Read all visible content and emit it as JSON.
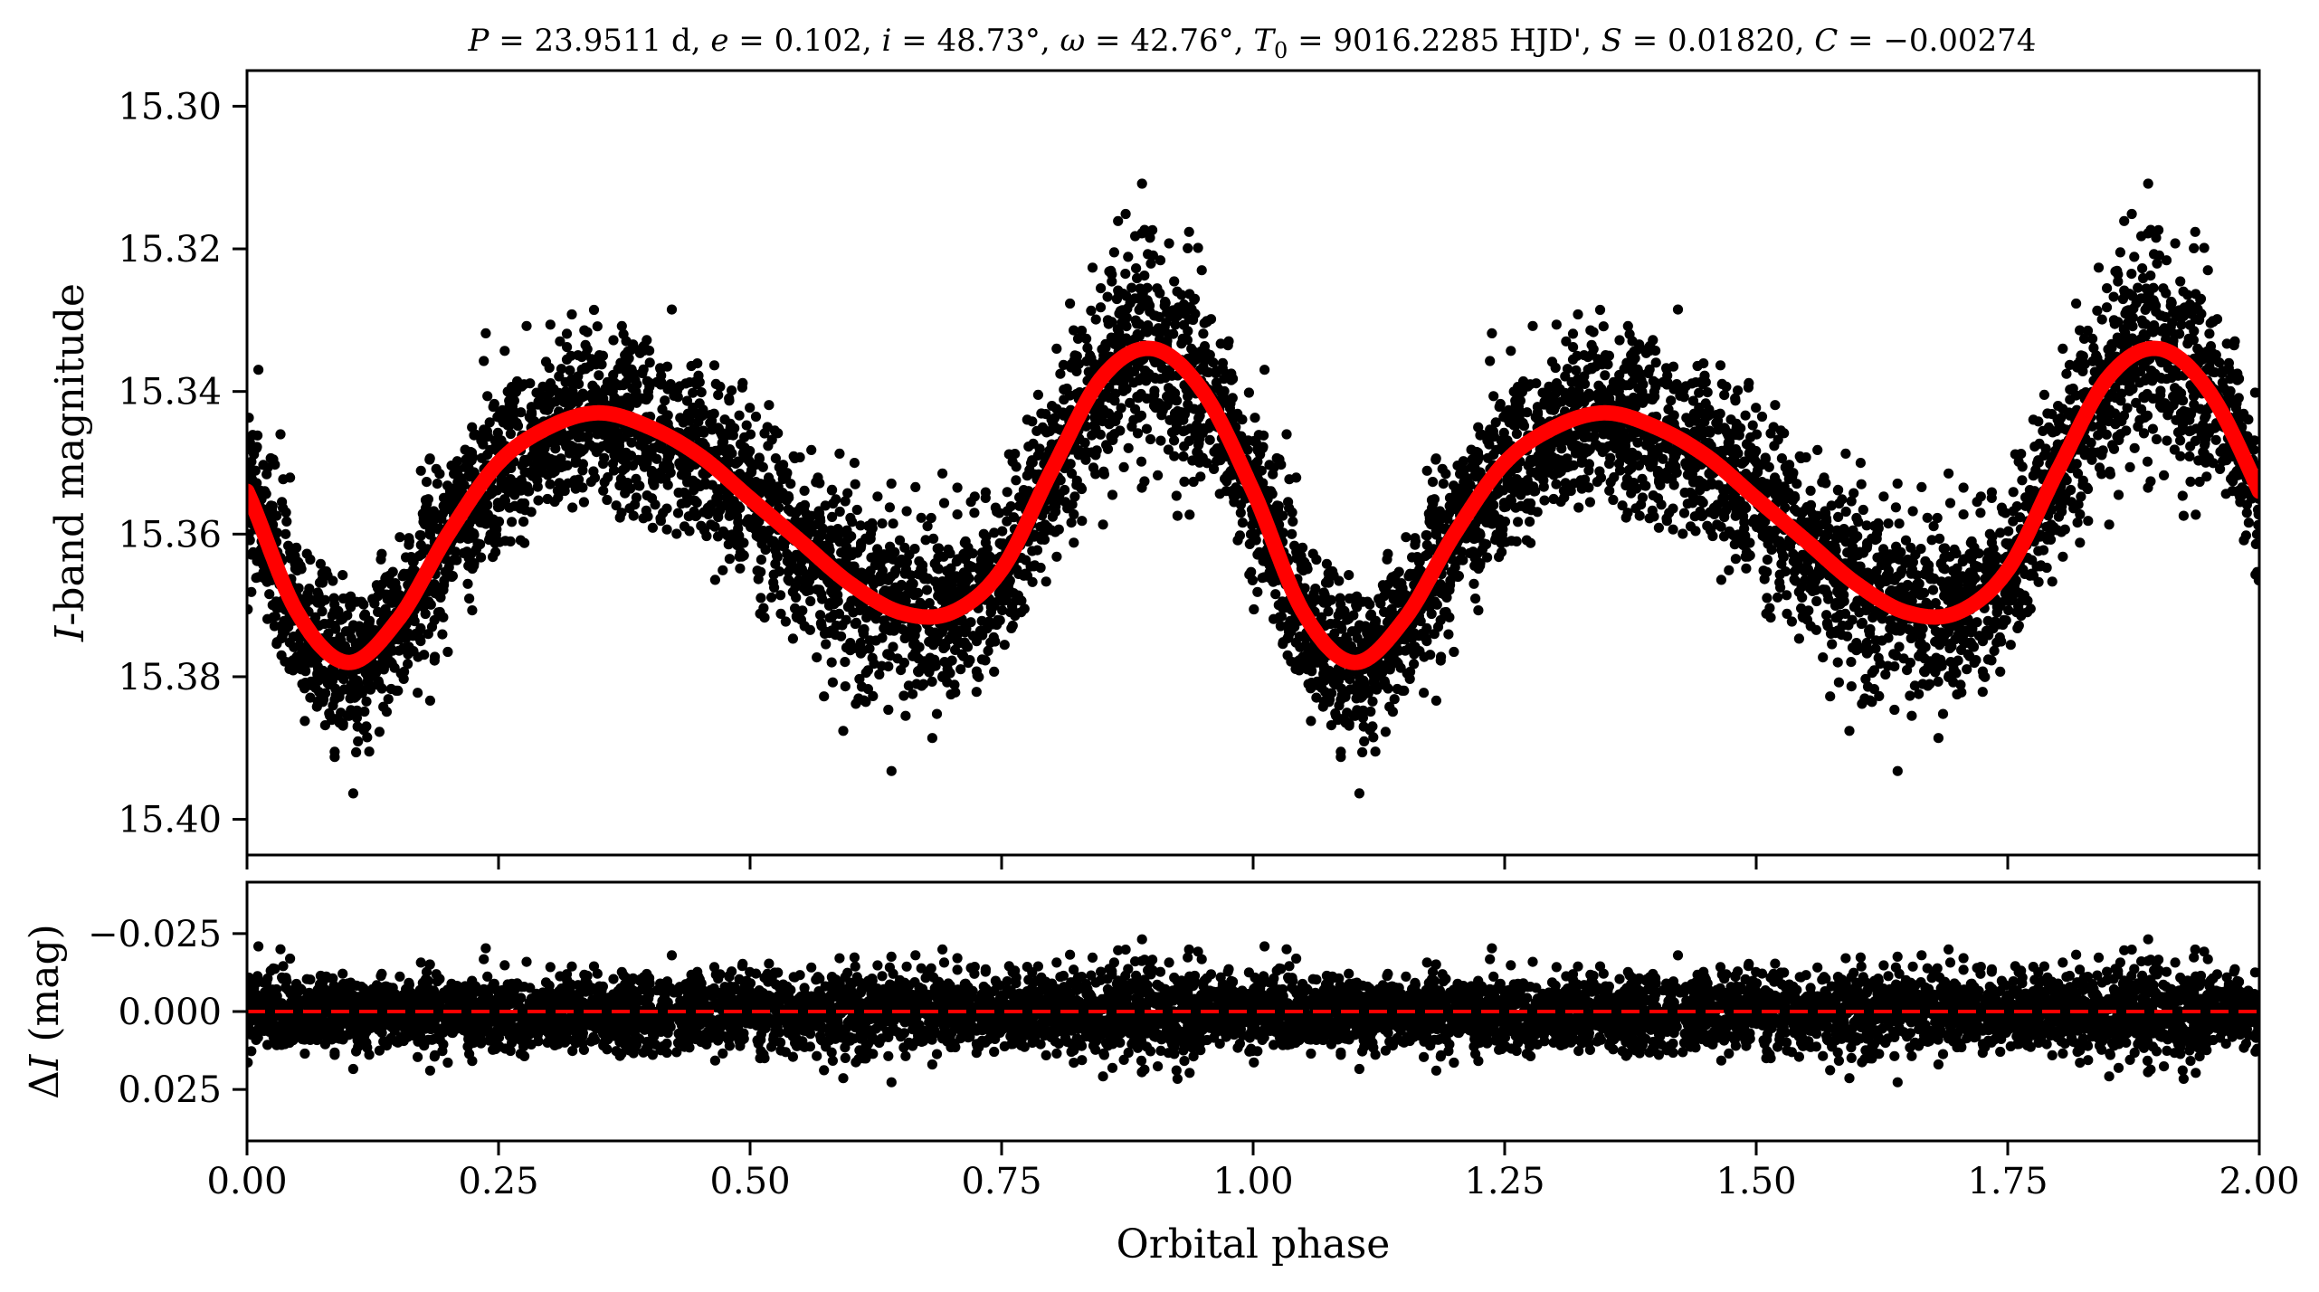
{
  "chart_data": [
    {
      "type": "scatter",
      "title": "P = 23.9511 d, e = 0.102, i = 48.73°, ω = 42.76°, T0 = 9016.2285 HJD', S = 0.01820, C = −0.00274",
      "title_parts": {
        "period": {
          "symbol": "P",
          "value": "23.9511 d"
        },
        "eccentricity": {
          "symbol": "e",
          "value": "0.102"
        },
        "inclination": {
          "symbol": "i",
          "value": "48.73°"
        },
        "omega": {
          "symbol": "ω",
          "value": "42.76°"
        },
        "epoch": {
          "symbol": "T",
          "subscript": "0",
          "value": "9016.2285 HJD'"
        },
        "scale": {
          "symbol": "S",
          "value": "0.01820"
        },
        "offset": {
          "symbol": "C",
          "value": "−0.00274"
        }
      },
      "xlabel": "",
      "ylabel_italic": "I",
      "ylabel_rest": "-band magnitude",
      "xlim": [
        0.0,
        2.0
      ],
      "ylim": [
        15.405,
        15.295
      ],
      "y_inverted": true,
      "yticks": [
        "15.30",
        "15.32",
        "15.34",
        "15.36",
        "15.38",
        "15.40"
      ],
      "ytick_values": [
        15.3,
        15.32,
        15.34,
        15.36,
        15.38,
        15.4
      ],
      "xtick_values": [
        0.0,
        0.25,
        0.5,
        0.75,
        1.0,
        1.25,
        1.5,
        1.75,
        2.0
      ],
      "grid": false,
      "series": [
        {
          "kind": "points",
          "color": "#000000",
          "count_per_cycle": 3500,
          "scatter_sigma_mag": 0.006
        },
        {
          "kind": "model_curve",
          "color": "#ff0000",
          "phase": [
            0.0,
            0.05,
            0.1,
            0.15,
            0.2,
            0.25,
            0.3,
            0.35,
            0.4,
            0.45,
            0.5,
            0.55,
            0.6,
            0.65,
            0.7,
            0.75,
            0.8,
            0.85,
            0.9,
            0.95,
            1.0
          ],
          "magnitude": [
            15.354,
            15.371,
            15.378,
            15.372,
            15.36,
            15.35,
            15.345,
            15.343,
            15.345,
            15.349,
            15.355,
            15.361,
            15.367,
            15.371,
            15.371,
            15.365,
            15.351,
            15.338,
            15.334,
            15.34,
            15.354
          ]
        }
      ]
    },
    {
      "type": "scatter",
      "xlabel": "Orbital phase",
      "ylabel_greek": "Δ",
      "ylabel_italic": "I",
      "ylabel_rest": " (mag)",
      "xlim": [
        0.0,
        2.0
      ],
      "ylim": [
        0.0415,
        -0.0415
      ],
      "y_inverted": true,
      "yticks": [
        "−0.025",
        "0.000",
        "0.025"
      ],
      "ytick_values": [
        -0.025,
        0.0,
        0.025
      ],
      "xticks": [
        "0.00",
        "0.25",
        "0.50",
        "0.75",
        "1.00",
        "1.25",
        "1.50",
        "1.75",
        "2.00"
      ],
      "xtick_values": [
        0.0,
        0.25,
        0.5,
        0.75,
        1.0,
        1.25,
        1.5,
        1.75,
        2.0
      ],
      "grid": false,
      "series": [
        {
          "kind": "residual_points",
          "color": "#000000",
          "count_per_cycle": 3500,
          "scatter_sigma_mag": 0.006
        },
        {
          "kind": "zero_line",
          "color": "#ff0000",
          "linestyle": "dashed",
          "value": 0.0
        }
      ]
    }
  ]
}
